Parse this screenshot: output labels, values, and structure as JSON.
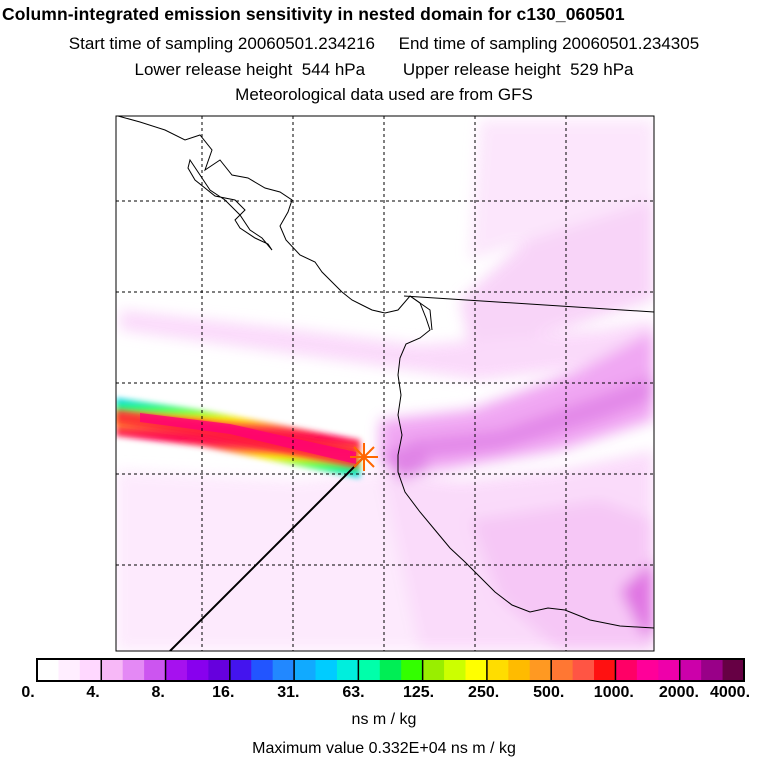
{
  "header": {
    "title": "Column-integrated emission sensitivity in nested domain for c130_060501",
    "line2": "Start time of sampling 20060501.234216     End time of sampling 20060501.234305",
    "line3": "Lower release height  544 hPa        Upper release height  529 hPa",
    "line4": "Meteorological data used are from GFS"
  },
  "colorbar": {
    "labels": [
      "0.",
      "4.",
      "8.",
      "16.",
      "31.",
      "63.",
      "125.",
      "250.",
      "500.",
      "1000.",
      "2000.",
      "4000."
    ],
    "colors": [
      "#ffffff",
      "#ffeeff",
      "#ffd8ff",
      "#f7b8f7",
      "#e489f5",
      "#cc55f0",
      "#a611ef",
      "#8800ee",
      "#6600dd",
      "#4414ee",
      "#2255ff",
      "#2288ff",
      "#11aaff",
      "#00ccff",
      "#00eedd",
      "#00ffaa",
      "#00ee55",
      "#33ff00",
      "#99ee00",
      "#ccff00",
      "#ffff00",
      "#ffdd00",
      "#ffbb00",
      "#ff9922",
      "#ff7733",
      "#ff5544",
      "#ff1111",
      "#ff0066",
      "#ff0099",
      "#ee00aa",
      "#cc00aa",
      "#990088",
      "#660044"
    ],
    "unit": "ns m / kg",
    "max_value": "Maximum value  0.332E+04 ns m / kg"
  },
  "map": {
    "background": "#ffffff",
    "grid_color": "#000000",
    "release_marker_color": "#ff6600"
  }
}
